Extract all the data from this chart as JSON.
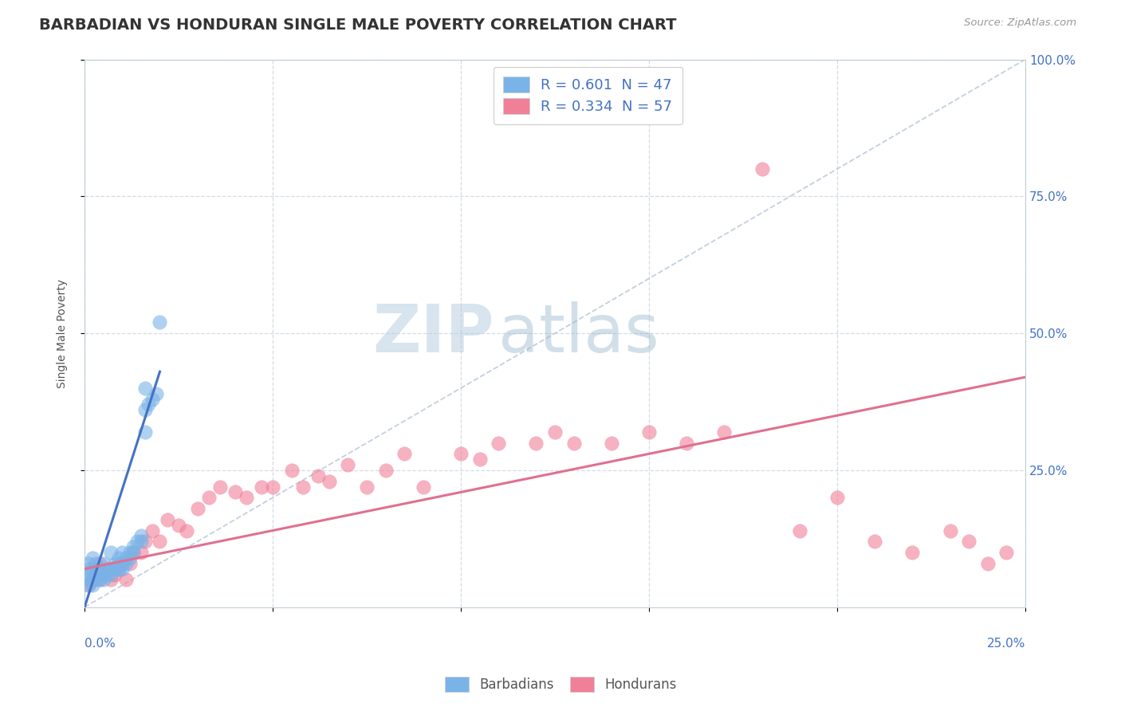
{
  "title": "BARBADIAN VS HONDURAN SINGLE MALE POVERTY CORRELATION CHART",
  "source_text": "Source: ZipAtlas.com",
  "ylabel": "Single Male Poverty",
  "right_ytick_labels": [
    "100.0%",
    "75.0%",
    "50.0%",
    "25.0%"
  ],
  "right_ytick_values": [
    1.0,
    0.75,
    0.5,
    0.25
  ],
  "legend_label1": "Barbadians",
  "legend_label2": "Hondurans",
  "legend_r1": "R = 0.601",
  "legend_n1": "N = 47",
  "legend_r2": "R = 0.334",
  "legend_n2": "N = 57",
  "barbadian_color": "#7ab3e8",
  "honduran_color": "#f08098",
  "trend_blue_color": "#4472c4",
  "trend_pink_color": "#e07090",
  "diagonal_color": "#b8c8d8",
  "background_color": "#ffffff",
  "plot_bg_color": "#ffffff",
  "watermark_zip": "ZIP",
  "watermark_atlas": "atlas",
  "barbadian_x": [
    0.001,
    0.001,
    0.001,
    0.001,
    0.001,
    0.002,
    0.002,
    0.002,
    0.002,
    0.003,
    0.003,
    0.003,
    0.004,
    0.004,
    0.004,
    0.005,
    0.005,
    0.005,
    0.006,
    0.006,
    0.007,
    0.007,
    0.007,
    0.008,
    0.008,
    0.009,
    0.009,
    0.009,
    0.01,
    0.01,
    0.01,
    0.011,
    0.011,
    0.012,
    0.012,
    0.013,
    0.013,
    0.014,
    0.015,
    0.015,
    0.016,
    0.016,
    0.016,
    0.017,
    0.018,
    0.019,
    0.02
  ],
  "barbadian_y": [
    0.04,
    0.05,
    0.06,
    0.07,
    0.08,
    0.04,
    0.05,
    0.07,
    0.09,
    0.05,
    0.06,
    0.08,
    0.05,
    0.06,
    0.07,
    0.05,
    0.06,
    0.08,
    0.06,
    0.07,
    0.06,
    0.07,
    0.1,
    0.07,
    0.08,
    0.07,
    0.08,
    0.09,
    0.07,
    0.08,
    0.1,
    0.08,
    0.09,
    0.09,
    0.1,
    0.1,
    0.11,
    0.12,
    0.12,
    0.13,
    0.32,
    0.36,
    0.4,
    0.37,
    0.38,
    0.39,
    0.52
  ],
  "honduran_x": [
    0.001,
    0.002,
    0.003,
    0.003,
    0.004,
    0.004,
    0.005,
    0.006,
    0.007,
    0.008,
    0.009,
    0.01,
    0.011,
    0.012,
    0.013,
    0.015,
    0.016,
    0.018,
    0.02,
    0.022,
    0.025,
    0.027,
    0.03,
    0.033,
    0.036,
    0.04,
    0.043,
    0.047,
    0.05,
    0.055,
    0.058,
    0.062,
    0.065,
    0.07,
    0.075,
    0.08,
    0.085,
    0.09,
    0.1,
    0.105,
    0.11,
    0.12,
    0.125,
    0.13,
    0.14,
    0.15,
    0.16,
    0.17,
    0.18,
    0.19,
    0.2,
    0.21,
    0.22,
    0.23,
    0.235,
    0.24,
    0.245
  ],
  "honduran_y": [
    0.04,
    0.05,
    0.06,
    0.07,
    0.05,
    0.08,
    0.06,
    0.07,
    0.05,
    0.06,
    0.07,
    0.08,
    0.05,
    0.08,
    0.1,
    0.1,
    0.12,
    0.14,
    0.12,
    0.16,
    0.15,
    0.14,
    0.18,
    0.2,
    0.22,
    0.21,
    0.2,
    0.22,
    0.22,
    0.25,
    0.22,
    0.24,
    0.23,
    0.26,
    0.22,
    0.25,
    0.28,
    0.22,
    0.28,
    0.27,
    0.3,
    0.3,
    0.32,
    0.3,
    0.3,
    0.32,
    0.3,
    0.32,
    0.8,
    0.14,
    0.2,
    0.12,
    0.1,
    0.14,
    0.12,
    0.08,
    0.1
  ],
  "blue_trend_x0": 0.0,
  "blue_trend_y0": 0.0,
  "blue_trend_x1": 0.02,
  "blue_trend_y1": 0.43,
  "pink_trend_x0": 0.0,
  "pink_trend_y0": 0.07,
  "pink_trend_x1": 0.25,
  "pink_trend_y1": 0.42,
  "xlim": [
    0.0,
    0.25
  ],
  "ylim": [
    0.0,
    1.0
  ]
}
